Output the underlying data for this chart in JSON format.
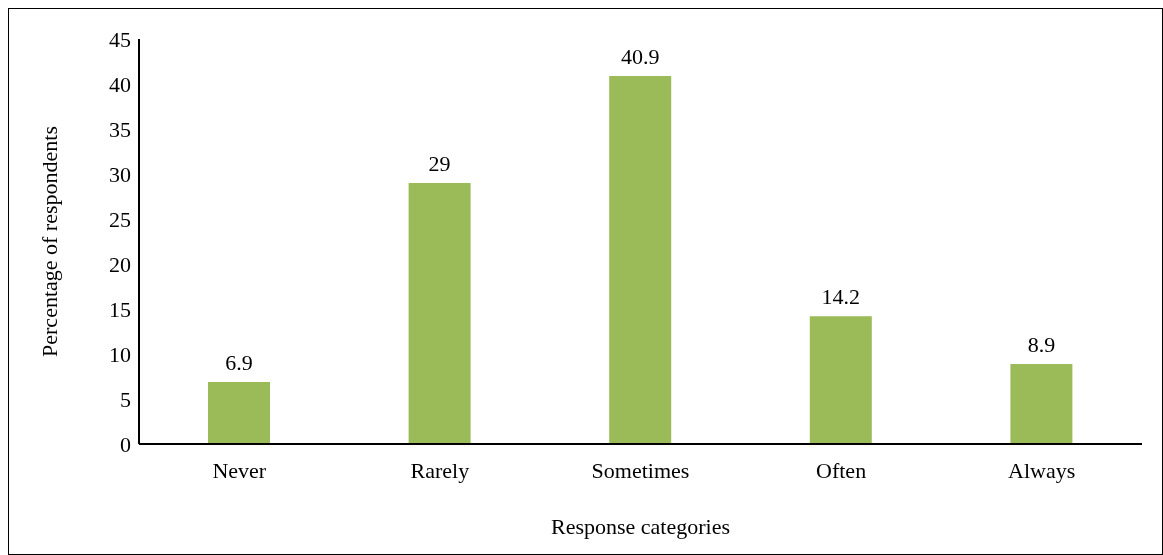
{
  "chart_data": {
    "type": "bar",
    "xlabel": "Response categories",
    "ylabel": "Percentage of respondents",
    "categories": [
      "Never",
      "Rarely",
      "Sometimes",
      "Often",
      "Always"
    ],
    "values": [
      6.9,
      29,
      40.9,
      14.2,
      8.9
    ],
    "color": "#9bbb59",
    "ylim": [
      0,
      45
    ],
    "yticks": [
      0,
      5,
      10,
      15,
      20,
      25,
      30,
      35,
      40,
      45
    ],
    "grid": false,
    "data_labels": true
  }
}
